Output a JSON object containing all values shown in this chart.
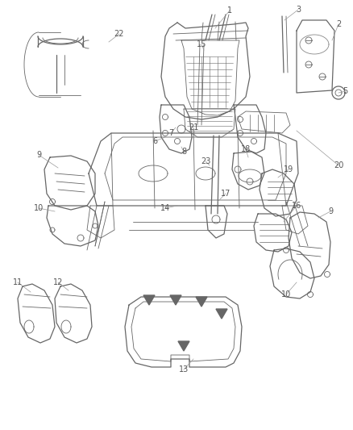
{
  "bg_color": "#ffffff",
  "fig_width": 4.38,
  "fig_height": 5.33,
  "dpi": 100,
  "image_data": ""
}
